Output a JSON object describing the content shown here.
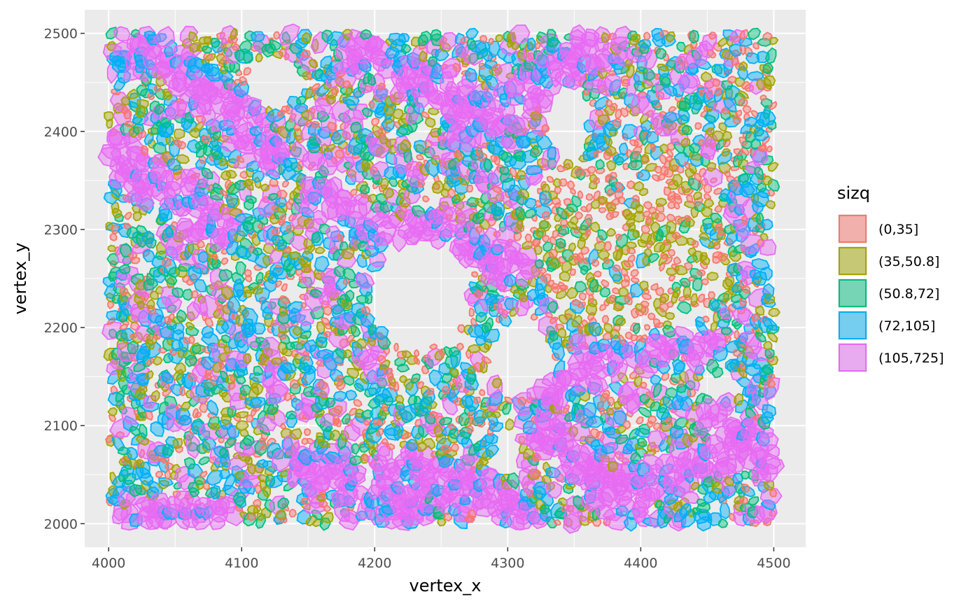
{
  "chart_data": {
    "type": "scatter",
    "xlabel": "vertex_x",
    "ylabel": "vertex_y",
    "xlim": [
      3982,
      4524
    ],
    "ylim": [
      1976,
      2524
    ],
    "x_ticks": [
      4000,
      4100,
      4200,
      4300,
      4400,
      4500
    ],
    "y_ticks": [
      2000,
      2100,
      2200,
      2300,
      2400,
      2500
    ],
    "x_tick_labels": [
      "4000",
      "4100",
      "4200",
      "4300",
      "4400",
      "4500"
    ],
    "y_tick_labels": [
      "2000",
      "2100",
      "2200",
      "2300",
      "2400",
      "2500"
    ],
    "grid": true,
    "legend": {
      "title": "sizq",
      "placement": "right",
      "entries": [
        {
          "label": "(0,35]",
          "color": "#F8766D"
        },
        {
          "label": "(35,50.8]",
          "color": "#A3A500"
        },
        {
          "label": "(50.8,72]",
          "color": "#00BF7D"
        },
        {
          "label": "(72,105]",
          "color": "#00B0F6"
        },
        {
          "label": "(105,725]",
          "color": "#E76BF3"
        }
      ]
    },
    "series": [
      {
        "name": "(0,35]",
        "color": "#F8766D",
        "approx_size": 6
      },
      {
        "name": "(35,50.8]",
        "color": "#A3A500",
        "approx_size": 8
      },
      {
        "name": "(50.8,72]",
        "color": "#00BF7D",
        "approx_size": 9
      },
      {
        "name": "(72,105]",
        "color": "#00B0F6",
        "approx_size": 11
      },
      {
        "name": "(105,725]",
        "color": "#E76BF3",
        "approx_size": 15
      }
    ],
    "panel_background": "#EBEBEB",
    "grid_color": "#FFFFFF"
  }
}
